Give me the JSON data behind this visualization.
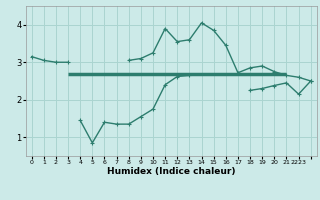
{
  "xlabel": "Humidex (Indice chaleur)",
  "x": [
    0,
    1,
    2,
    3,
    4,
    5,
    6,
    7,
    8,
    9,
    10,
    11,
    12,
    13,
    14,
    15,
    16,
    17,
    18,
    19,
    20,
    21,
    22,
    23
  ],
  "line_top": [
    3.15,
    3.05,
    3.0,
    3.0,
    null,
    null,
    null,
    null,
    3.05,
    3.1,
    3.25,
    3.9,
    3.55,
    3.6,
    4.05,
    3.85,
    3.45,
    2.72,
    2.85,
    2.9,
    2.75,
    2.65,
    2.6,
    2.5
  ],
  "line_flat_x": [
    3,
    4,
    5,
    6,
    7,
    8,
    9,
    10,
    11,
    12,
    13,
    14,
    15,
    16,
    17,
    18,
    19,
    20,
    21
  ],
  "line_flat_y": [
    2.68,
    2.68,
    2.68,
    2.68,
    2.68,
    2.68,
    2.68,
    2.68,
    2.68,
    2.68,
    2.68,
    2.68,
    2.68,
    2.68,
    2.68,
    2.68,
    2.68,
    2.68,
    2.68
  ],
  "line_bottom": [
    null,
    null,
    null,
    null,
    1.45,
    0.85,
    1.4,
    1.35,
    1.35,
    1.55,
    1.75,
    2.4,
    2.62,
    2.65,
    null,
    null,
    null,
    null,
    null,
    null,
    null,
    null,
    null,
    null
  ],
  "line_diag": [
    null,
    null,
    null,
    null,
    null,
    null,
    null,
    null,
    null,
    null,
    null,
    null,
    null,
    null,
    null,
    null,
    null,
    null,
    2.25,
    2.3,
    2.38,
    2.45,
    2.15,
    2.5
  ],
  "color": "#2d7d6e",
  "bg_color": "#cceae8",
  "grid_color": "#aad4d0",
  "ylim": [
    0.5,
    4.5
  ],
  "xlim": [
    -0.5,
    23.5
  ],
  "yticks": [
    1,
    2,
    3,
    4
  ],
  "xticks": [
    0,
    1,
    2,
    3,
    4,
    5,
    6,
    7,
    8,
    9,
    10,
    11,
    12,
    13,
    14,
    15,
    16,
    17,
    18,
    19,
    20,
    21,
    22,
    23
  ],
  "xtick_labels": [
    "0",
    "1",
    "2",
    "3",
    "4",
    "5",
    "6",
    "7",
    "8",
    "9",
    "10",
    "11",
    "12",
    "13",
    "14",
    "15",
    "16",
    "17",
    "18",
    "19",
    "20",
    "21",
    "2223",
    ""
  ],
  "flat_lw": 2.5,
  "line_lw": 1.0,
  "marker_size": 3.5
}
